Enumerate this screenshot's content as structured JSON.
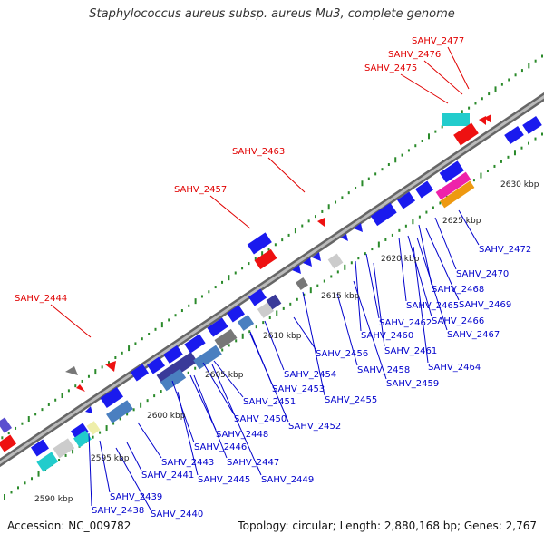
{
  "title": "Staphylococcus aureus subsp. aureus Mu3, complete genome",
  "accession": "Accession: NC_009782",
  "summary": "Topology: circular; Length: 2,880,168 bp; Genes: 2,767",
  "colors": {
    "label_highlight": "#e00000",
    "label_normal": "#0000cc",
    "gene_blue": "#1a1aee",
    "gene_red": "#ee1111",
    "gene_cyan": "#22cccc",
    "gene_gray": "#999999",
    "gene_steel": "#4a7fc0",
    "gene_navy": "#3a3a99",
    "gene_magenta": "#ee22aa",
    "gene_orange": "#ee9911",
    "tick_green": "#2a8a2a",
    "backbone": "#888888"
  },
  "kbp_ticks": [
    "2590 kbp",
    "2595 kbp",
    "2600 kbp",
    "2605 kbp",
    "2610 kbp",
    "2615 kbp",
    "2620 kbp",
    "2625 kbp",
    "2630 kbp"
  ],
  "labels_top": [
    "SAHV_2477",
    "SAHV_2476",
    "SAHV_2475",
    "SAHV_2463",
    "SAHV_2457",
    "SAHV_2444"
  ],
  "labels_bottom": [
    "SAHV_2472",
    "SAHV_2470",
    "SAHV_2468",
    "SAHV_2469",
    "SAHV_2465",
    "SAHV_2466",
    "SAHV_2467",
    "SAHV_2462",
    "SAHV_2460",
    "SAHV_2461",
    "SAHV_2464",
    "SAHV_2456",
    "SAHV_2458",
    "SAHV_2459",
    "SAHV_2454",
    "SAHV_2453",
    "SAHV_2455",
    "SAHV_2451",
    "SAHV_2452",
    "SAHV_2450",
    "SAHV_2448",
    "SAHV_2446",
    "SAHV_2447",
    "SAHV_2449",
    "SAHV_2443",
    "SAHV_2445",
    "SAHV_2441",
    "SAHV_2439",
    "SAHV_2440",
    "SAHV_2438"
  ]
}
